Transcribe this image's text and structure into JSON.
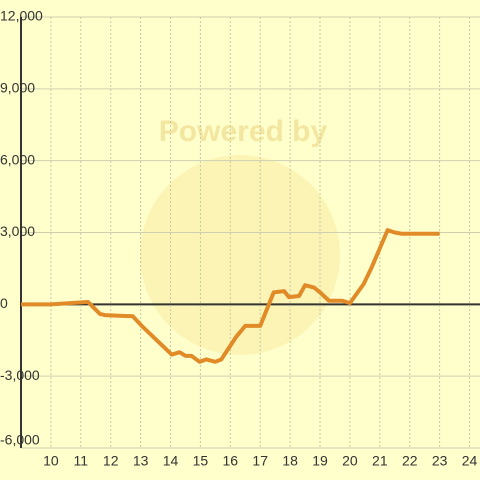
{
  "chart_data": {
    "type": "line",
    "watermark": "Powered by",
    "x": [
      9,
      10,
      11.24,
      11.64,
      11.8,
      12.74,
      13.04,
      14.04,
      14.3,
      14.5,
      14.7,
      14.97,
      15.2,
      15.5,
      15.7,
      16.2,
      16.5,
      17.0,
      17.45,
      17.8,
      17.96,
      18.3,
      18.5,
      18.8,
      19.0,
      19.3,
      19.75,
      20.0,
      20.46,
      20.73,
      21.26,
      21.5,
      21.73,
      23.0
    ],
    "series": [
      {
        "color": "#e08a28",
        "values": [
          0,
          0,
          100,
          -400,
          -450,
          -500,
          -900,
          -2100,
          -2000,
          -2150,
          -2150,
          -2400,
          -2300,
          -2400,
          -2300,
          -1350,
          -900,
          -900,
          500,
          550,
          300,
          350,
          800,
          700,
          500,
          150,
          150,
          50,
          850,
          1550,
          3100,
          3000,
          2950,
          2950
        ]
      }
    ],
    "xlim": [
      9,
      24.35
    ],
    "xticks": [
      10,
      11,
      12,
      13,
      14,
      15,
      16,
      17,
      18,
      19,
      20,
      21,
      22,
      23,
      24
    ],
    "ylim": [
      -6000,
      12000
    ],
    "yticks": [
      {
        "value": -6000,
        "label": "-6,000"
      },
      {
        "value": -3000,
        "label": "-3,000"
      },
      0,
      {
        "value": 3000,
        "label": "3,000"
      },
      {
        "value": 6000,
        "label": "6,000"
      },
      {
        "value": 9000,
        "label": "9,000"
      },
      {
        "value": 12000,
        "label": "12,000"
      }
    ],
    "grid": true
  }
}
